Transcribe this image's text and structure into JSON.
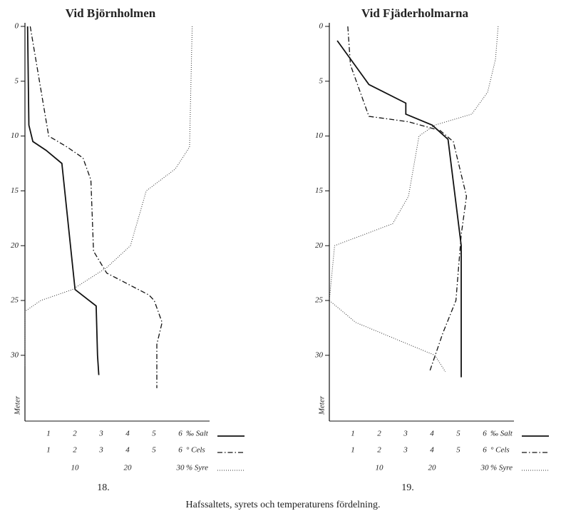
{
  "chart_data": [
    {
      "type": "line",
      "title": "Vid Björnholmen",
      "label": "18.",
      "ylabel": "Meter",
      "ylim": [
        0,
        36
      ],
      "yticks": [
        0,
        5,
        10,
        15,
        20,
        25,
        30
      ],
      "y_inverted": true,
      "series": [
        {
          "name": "‰ Salt",
          "color": "#111",
          "line_style": "solid",
          "xlim": [
            0,
            7
          ],
          "xticks": [
            1,
            2,
            3,
            4,
            5,
            6
          ],
          "depth": [
            0,
            9,
            10.5,
            11.3,
            12.5,
            24,
            25.5,
            30,
            31.8
          ],
          "values": [
            0.1,
            0.15,
            0.3,
            0.8,
            1.4,
            1.9,
            2.7,
            2.75,
            2.8
          ]
        },
        {
          "name": "° Cels",
          "color": "#111",
          "line_style": "dashdot",
          "xlim": [
            0,
            7
          ],
          "xticks": [
            1,
            2,
            3,
            4,
            5,
            6
          ],
          "depth": [
            0,
            10,
            11,
            12,
            14,
            20.5,
            22.5,
            24.5,
            25,
            27,
            29,
            33
          ],
          "values": [
            0.2,
            0.9,
            1.6,
            2.2,
            2.5,
            2.6,
            3.1,
            4.7,
            4.9,
            5.2,
            5.0,
            5.0
          ]
        },
        {
          "name": "% Syre",
          "color": "#333",
          "line_style": "dotted",
          "xlim": [
            0,
            35
          ],
          "xticks": [
            10,
            20,
            30
          ],
          "depth": [
            0,
            11,
            13,
            15,
            20,
            22,
            24,
            25,
            26,
            31
          ],
          "values": [
            31.7,
            31.2,
            28.5,
            23,
            20,
            15.5,
            9,
            3,
            0,
            0
          ]
        }
      ]
    },
    {
      "type": "line",
      "title": "Vid Fjäderholmarna",
      "label": "19.",
      "ylabel": "Meter",
      "ylim": [
        0,
        36
      ],
      "yticks": [
        0,
        5,
        10,
        15,
        20,
        25,
        30
      ],
      "y_inverted": true,
      "series": [
        {
          "name": "‰ Salt",
          "color": "#111",
          "line_style": "solid",
          "xlim": [
            0,
            7
          ],
          "xticks": [
            1,
            2,
            3,
            4,
            5,
            6
          ],
          "depth": [
            1.3,
            5.3,
            7,
            8,
            9,
            10.3,
            20,
            32
          ],
          "values": [
            0.3,
            1.5,
            2.9,
            2.9,
            3.9,
            4.5,
            5.0,
            5.0
          ]
        },
        {
          "name": "° Cels",
          "color": "#111",
          "line_style": "dashdot",
          "xlim": [
            0,
            7
          ],
          "xticks": [
            1,
            2,
            3,
            4,
            5,
            6
          ],
          "depth": [
            0,
            3.5,
            8.2,
            8.7,
            9.5,
            10.5,
            15.5,
            19,
            25,
            28,
            31.5
          ],
          "values": [
            0.7,
            0.8,
            1.5,
            3.0,
            4.2,
            4.7,
            5.2,
            5.0,
            4.8,
            4.3,
            3.8
          ]
        },
        {
          "name": "% Syre",
          "color": "#333",
          "line_style": "dotted",
          "xlim": [
            0,
            35
          ],
          "xticks": [
            10,
            20,
            30
          ],
          "depth": [
            0,
            3,
            6,
            8,
            9,
            10,
            15.5,
            18,
            20,
            25,
            27,
            29,
            30,
            31.5
          ],
          "values": [
            32,
            31.5,
            30,
            27,
            20,
            17,
            15,
            12,
            1,
            0,
            5,
            15,
            20,
            22
          ]
        }
      ]
    }
  ],
  "caption": "Hafssaltets, syrets och temperaturens fördelning."
}
